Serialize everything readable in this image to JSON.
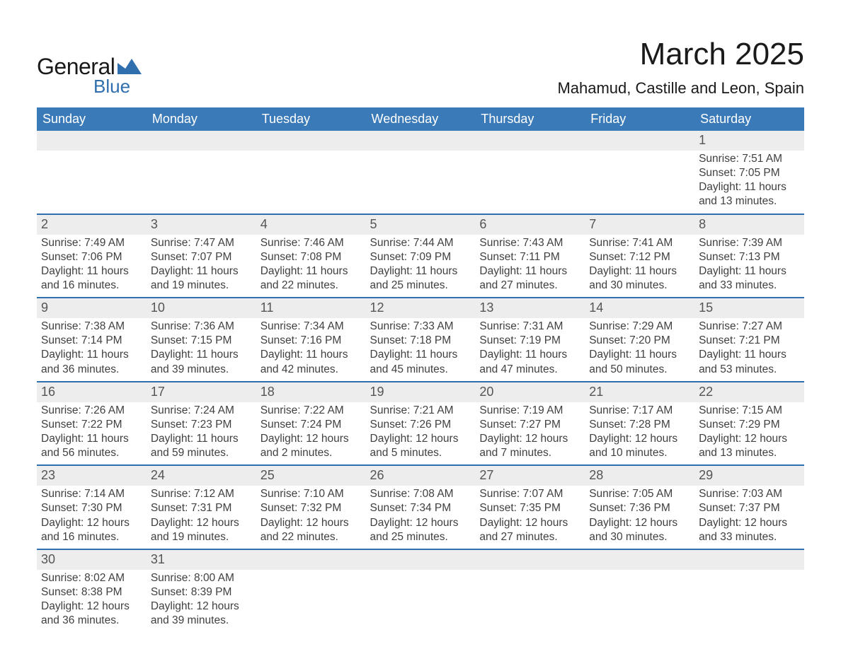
{
  "brand": {
    "part1": "General",
    "part2": "Blue",
    "icon_color": "#2f6fae",
    "text1_color": "#1a1a1a",
    "text2_color": "#2f6fae"
  },
  "title": {
    "month": "March 2025",
    "location": "Mahamud, Castille and Leon, Spain"
  },
  "colors": {
    "header_blue": "#3a7ab8",
    "divider_blue": "#2f6fae",
    "gray_bg": "#ededed",
    "text": "#404040",
    "background": "#ffffff"
  },
  "days_of_week": [
    "Sunday",
    "Monday",
    "Tuesday",
    "Wednesday",
    "Thursday",
    "Friday",
    "Saturday"
  ],
  "labels": {
    "sunrise": "Sunrise:",
    "sunset": "Sunset:",
    "daylight": "Daylight:"
  },
  "weeks": [
    [
      null,
      null,
      null,
      null,
      null,
      null,
      {
        "n": "1",
        "sunrise": "7:51 AM",
        "sunset": "7:05 PM",
        "daylight": "11 hours and 13 minutes."
      }
    ],
    [
      {
        "n": "2",
        "sunrise": "7:49 AM",
        "sunset": "7:06 PM",
        "daylight": "11 hours and 16 minutes."
      },
      {
        "n": "3",
        "sunrise": "7:47 AM",
        "sunset": "7:07 PM",
        "daylight": "11 hours and 19 minutes."
      },
      {
        "n": "4",
        "sunrise": "7:46 AM",
        "sunset": "7:08 PM",
        "daylight": "11 hours and 22 minutes."
      },
      {
        "n": "5",
        "sunrise": "7:44 AM",
        "sunset": "7:09 PM",
        "daylight": "11 hours and 25 minutes."
      },
      {
        "n": "6",
        "sunrise": "7:43 AM",
        "sunset": "7:11 PM",
        "daylight": "11 hours and 27 minutes."
      },
      {
        "n": "7",
        "sunrise": "7:41 AM",
        "sunset": "7:12 PM",
        "daylight": "11 hours and 30 minutes."
      },
      {
        "n": "8",
        "sunrise": "7:39 AM",
        "sunset": "7:13 PM",
        "daylight": "11 hours and 33 minutes."
      }
    ],
    [
      {
        "n": "9",
        "sunrise": "7:38 AM",
        "sunset": "7:14 PM",
        "daylight": "11 hours and 36 minutes."
      },
      {
        "n": "10",
        "sunrise": "7:36 AM",
        "sunset": "7:15 PM",
        "daylight": "11 hours and 39 minutes."
      },
      {
        "n": "11",
        "sunrise": "7:34 AM",
        "sunset": "7:16 PM",
        "daylight": "11 hours and 42 minutes."
      },
      {
        "n": "12",
        "sunrise": "7:33 AM",
        "sunset": "7:18 PM",
        "daylight": "11 hours and 45 minutes."
      },
      {
        "n": "13",
        "sunrise": "7:31 AM",
        "sunset": "7:19 PM",
        "daylight": "11 hours and 47 minutes."
      },
      {
        "n": "14",
        "sunrise": "7:29 AM",
        "sunset": "7:20 PM",
        "daylight": "11 hours and 50 minutes."
      },
      {
        "n": "15",
        "sunrise": "7:27 AM",
        "sunset": "7:21 PM",
        "daylight": "11 hours and 53 minutes."
      }
    ],
    [
      {
        "n": "16",
        "sunrise": "7:26 AM",
        "sunset": "7:22 PM",
        "daylight": "11 hours and 56 minutes."
      },
      {
        "n": "17",
        "sunrise": "7:24 AM",
        "sunset": "7:23 PM",
        "daylight": "11 hours and 59 minutes."
      },
      {
        "n": "18",
        "sunrise": "7:22 AM",
        "sunset": "7:24 PM",
        "daylight": "12 hours and 2 minutes."
      },
      {
        "n": "19",
        "sunrise": "7:21 AM",
        "sunset": "7:26 PM",
        "daylight": "12 hours and 5 minutes."
      },
      {
        "n": "20",
        "sunrise": "7:19 AM",
        "sunset": "7:27 PM",
        "daylight": "12 hours and 7 minutes."
      },
      {
        "n": "21",
        "sunrise": "7:17 AM",
        "sunset": "7:28 PM",
        "daylight": "12 hours and 10 minutes."
      },
      {
        "n": "22",
        "sunrise": "7:15 AM",
        "sunset": "7:29 PM",
        "daylight": "12 hours and 13 minutes."
      }
    ],
    [
      {
        "n": "23",
        "sunrise": "7:14 AM",
        "sunset": "7:30 PM",
        "daylight": "12 hours and 16 minutes."
      },
      {
        "n": "24",
        "sunrise": "7:12 AM",
        "sunset": "7:31 PM",
        "daylight": "12 hours and 19 minutes."
      },
      {
        "n": "25",
        "sunrise": "7:10 AM",
        "sunset": "7:32 PM",
        "daylight": "12 hours and 22 minutes."
      },
      {
        "n": "26",
        "sunrise": "7:08 AM",
        "sunset": "7:34 PM",
        "daylight": "12 hours and 25 minutes."
      },
      {
        "n": "27",
        "sunrise": "7:07 AM",
        "sunset": "7:35 PM",
        "daylight": "12 hours and 27 minutes."
      },
      {
        "n": "28",
        "sunrise": "7:05 AM",
        "sunset": "7:36 PM",
        "daylight": "12 hours and 30 minutes."
      },
      {
        "n": "29",
        "sunrise": "7:03 AM",
        "sunset": "7:37 PM",
        "daylight": "12 hours and 33 minutes."
      }
    ],
    [
      {
        "n": "30",
        "sunrise": "8:02 AM",
        "sunset": "8:38 PM",
        "daylight": "12 hours and 36 minutes."
      },
      {
        "n": "31",
        "sunrise": "8:00 AM",
        "sunset": "8:39 PM",
        "daylight": "12 hours and 39 minutes."
      },
      null,
      null,
      null,
      null,
      null
    ]
  ]
}
